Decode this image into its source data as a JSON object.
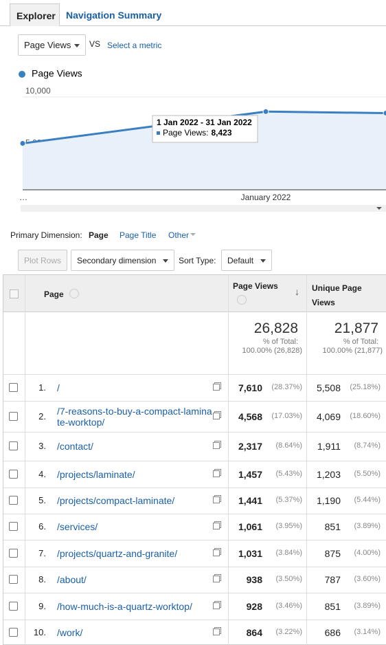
{
  "tabs": [
    "Explorer",
    "Navigation Summary"
  ],
  "metric": {
    "selected": "Page Views",
    "vs": "VS",
    "other": "Select a metric"
  },
  "chart": {
    "type": "line",
    "legend": "Page Views",
    "color": "#3a7fc1",
    "x": [
      "…",
      "January 2022",
      null
    ],
    "values": [
      5000,
      8423,
      8260
    ],
    "ylim": [
      0,
      10000
    ],
    "yticks": [
      {
        "value": 5000,
        "label": "5,000"
      },
      {
        "value": 10000,
        "label": "10,000"
      }
    ],
    "tooltip": {
      "title": "1 Jan 2022 - 31 Jan 2022",
      "label": "Page Views:",
      "value": "8,423"
    }
  },
  "dimension": {
    "label": "Primary Dimension:",
    "selected": "Page",
    "options": [
      "Page Title",
      "Other"
    ]
  },
  "toolbar": {
    "plot": "Plot Rows",
    "secondary": "Secondary dimension",
    "sort_label": "Sort Type:",
    "sort": "Default"
  },
  "table": {
    "headers": [
      "Page",
      "Page Views",
      "Unique Page Views"
    ],
    "totals": [
      {
        "value": "26,828",
        "pct_label": "% of Total:",
        "pct": "100.00% (26,828)"
      },
      {
        "value": "21,877",
        "pct_label": "% of Total:",
        "pct": "100.00% (21,877)"
      }
    ],
    "rows": [
      {
        "num": "1.",
        "page": "/",
        "pv": "7,610",
        "pvp": "(28.37%)",
        "upv": "5,508",
        "upvp": "(25.18%)"
      },
      {
        "num": "2.",
        "page": "/7-reasons-to-buy-a-compact-laminate-worktop/",
        "pv": "4,568",
        "pvp": "(17.03%)",
        "upv": "4,069",
        "upvp": "(18.60%)"
      },
      {
        "num": "3.",
        "page": "/contact/",
        "pv": "2,317",
        "pvp": "(8.64%)",
        "upv": "1,911",
        "upvp": "(8.74%)"
      },
      {
        "num": "4.",
        "page": "/projects/laminate/",
        "pv": "1,457",
        "pvp": "(5.43%)",
        "upv": "1,203",
        "upvp": "(5.50%)"
      },
      {
        "num": "5.",
        "page": "/projects/compact-laminate/",
        "pv": "1,441",
        "pvp": "(5.37%)",
        "upv": "1,190",
        "upvp": "(5.44%)"
      },
      {
        "num": "6.",
        "page": "/services/",
        "pv": "1,061",
        "pvp": "(3.95%)",
        "upv": "851",
        "upvp": "(3.89%)"
      },
      {
        "num": "7.",
        "page": "/projects/quartz-and-granite/",
        "pv": "1,031",
        "pvp": "(3.84%)",
        "upv": "875",
        "upvp": "(4.00%)"
      },
      {
        "num": "8.",
        "page": "/about/",
        "pv": "938",
        "pvp": "(3.50%)",
        "upv": "787",
        "upvp": "(3.60%)"
      },
      {
        "num": "9.",
        "page": "/how-much-is-a-quartz-worktop/",
        "pv": "928",
        "pvp": "(3.46%)",
        "upv": "851",
        "upvp": "(3.89%)"
      },
      {
        "num": "10.",
        "page": "/work/",
        "pv": "864",
        "pvp": "(3.22%)",
        "upv": "686",
        "upvp": "(3.14%)"
      }
    ]
  }
}
